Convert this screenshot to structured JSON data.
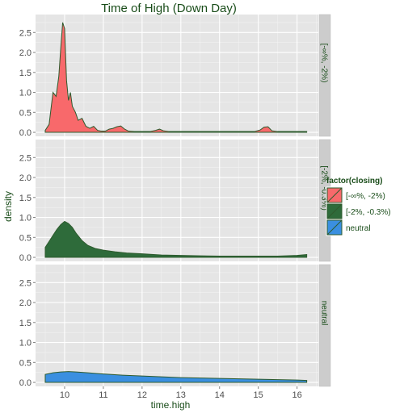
{
  "chart_data": {
    "type": "area",
    "title": "Time of High (Down Day)",
    "xlabel": "time.high",
    "ylabel": "density",
    "xlim": [
      9.25,
      16.55
    ],
    "ylim": [
      -0.1,
      2.95
    ],
    "x_ticks": [
      "10",
      "11",
      "12",
      "13",
      "14",
      "15",
      "16"
    ],
    "x_tick_values": [
      10,
      11,
      12,
      13,
      14,
      15,
      16
    ],
    "y_ticks": [
      "0.0",
      "0.5",
      "1.0",
      "1.5",
      "2.0",
      "2.5"
    ],
    "y_tick_values": [
      0,
      0.5,
      1.0,
      1.5,
      2.0,
      2.5
    ],
    "grid": true,
    "legend": {
      "title": "factor(closing)",
      "placement": "right",
      "entries": [
        {
          "label": "[-∞%, -2%)",
          "color": "#f8696b"
        },
        {
          "label": "[-2%, -0.3%)",
          "color": "#2e6b3a"
        },
        {
          "label": "neutral",
          "color": "#3a8fe0"
        }
      ]
    },
    "panels": [
      {
        "strip_label": "[-∞%, -2%)",
        "series_color": "#f8696b",
        "x": [
          9.5,
          9.6,
          9.65,
          9.7,
          9.78,
          9.85,
          9.9,
          9.95,
          10.0,
          10.05,
          10.1,
          10.15,
          10.2,
          10.28,
          10.35,
          10.45,
          10.55,
          10.65,
          10.75,
          10.85,
          10.95,
          11.05,
          11.15,
          11.25,
          11.35,
          11.45,
          11.55,
          11.65,
          11.8,
          12.0,
          12.2,
          12.35,
          12.45,
          12.55,
          12.7,
          13.0,
          14.0,
          14.9,
          15.05,
          15.15,
          15.25,
          15.35,
          15.5,
          15.7,
          16.25
        ],
        "y": [
          0.05,
          0.2,
          0.6,
          1.0,
          0.9,
          1.4,
          2.1,
          2.75,
          2.6,
          1.3,
          0.8,
          1.0,
          0.65,
          0.5,
          0.3,
          0.35,
          0.15,
          0.1,
          0.15,
          0.05,
          0.03,
          0.03,
          0.08,
          0.1,
          0.14,
          0.16,
          0.08,
          0.03,
          0.02,
          0.02,
          0.02,
          0.05,
          0.08,
          0.04,
          0.02,
          0.02,
          0.02,
          0.02,
          0.06,
          0.13,
          0.14,
          0.04,
          0.02,
          0.02,
          0.02
        ]
      },
      {
        "strip_label": "[-2%, -0.3%)",
        "series_color": "#2e6b3a",
        "x": [
          9.5,
          9.6,
          9.7,
          9.8,
          9.9,
          10.0,
          10.1,
          10.2,
          10.3,
          10.45,
          10.6,
          10.8,
          11.0,
          11.3,
          11.6,
          12.0,
          12.5,
          13.0,
          13.5,
          14.0,
          14.5,
          15.0,
          15.5,
          16.0,
          16.25
        ],
        "y": [
          0.25,
          0.4,
          0.55,
          0.7,
          0.82,
          0.9,
          0.85,
          0.75,
          0.6,
          0.42,
          0.3,
          0.22,
          0.18,
          0.14,
          0.11,
          0.09,
          0.06,
          0.05,
          0.04,
          0.03,
          0.03,
          0.03,
          0.03,
          0.05,
          0.07
        ]
      },
      {
        "strip_label": "neutral",
        "series_color": "#3a8fe0",
        "x": [
          9.5,
          9.7,
          9.9,
          10.1,
          10.3,
          10.6,
          11.0,
          11.5,
          12.0,
          12.5,
          13.0,
          13.5,
          14.0,
          14.5,
          15.0,
          15.5,
          16.0,
          16.25
        ],
        "y": [
          0.2,
          0.24,
          0.26,
          0.27,
          0.26,
          0.24,
          0.21,
          0.18,
          0.16,
          0.14,
          0.12,
          0.11,
          0.1,
          0.09,
          0.08,
          0.07,
          0.06,
          0.05
        ]
      }
    ]
  }
}
